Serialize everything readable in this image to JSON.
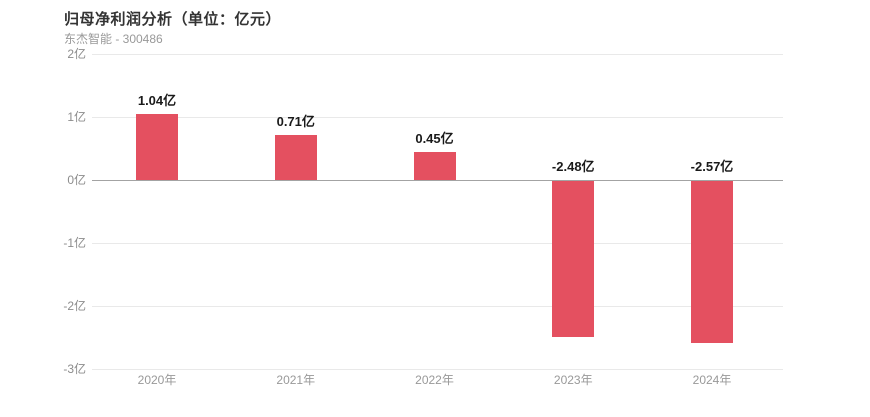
{
  "header": {
    "title": "归母净利润分析（单位：亿元）",
    "subtitle": "东杰智能 - 300486"
  },
  "chart_data": {
    "type": "bar",
    "title": "归母净利润分析（单位：亿元）",
    "subtitle": "东杰智能 - 300486",
    "unit": "亿元",
    "categories": [
      "2020年",
      "2021年",
      "2022年",
      "2023年",
      "2024年"
    ],
    "values": [
      1.04,
      0.71,
      0.45,
      -2.48,
      -2.57
    ],
    "value_labels": [
      "1.04亿",
      "0.71亿",
      "0.45亿",
      "-2.48亿",
      "-2.57亿"
    ],
    "xlabel": "",
    "ylabel": "",
    "ylim": [
      -3,
      2
    ],
    "yticks": [
      {
        "value": 2,
        "label": "2亿"
      },
      {
        "value": 1,
        "label": "1亿"
      },
      {
        "value": 0,
        "label": "0亿"
      },
      {
        "value": -1,
        "label": "-1亿"
      },
      {
        "value": -2,
        "label": "-2亿"
      },
      {
        "value": -3,
        "label": "-3亿"
      }
    ],
    "grid": true,
    "legend": false,
    "colors": {
      "bar": "#e45060",
      "gridline": "#e9e9e9",
      "zero_line": "#a3a3a3",
      "tick_label": "#8c8c8c",
      "category_label": "#999999",
      "value_label": "#1a1a1a",
      "title": "#333333",
      "subtitle": "#999999",
      "background": "#ffffff"
    }
  }
}
